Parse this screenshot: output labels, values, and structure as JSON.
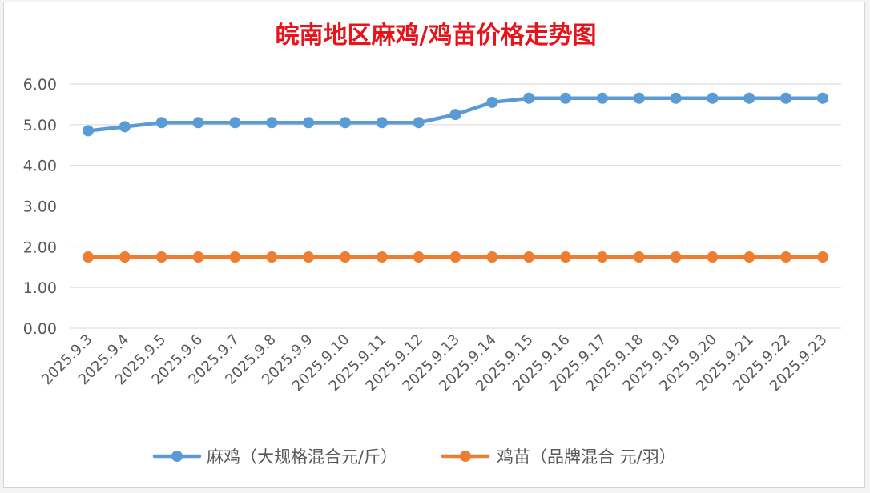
{
  "chart_data": {
    "type": "line",
    "title": "皖南地区麻鸡/鸡苗价格走势图",
    "categories": [
      "2025.9.3",
      "2025.9.4",
      "2025.9.5",
      "2025.9.6",
      "2025.9.7",
      "2025.9.8",
      "2025.9.9",
      "2025.9.10",
      "2025.9.11",
      "2025.9.12",
      "2025.9.13",
      "2025.9.14",
      "2025.9.15",
      "2025.9.16",
      "2025.9.17",
      "2025.9.18",
      "2025.9.19",
      "2025.9.20",
      "2025.9.21",
      "2025.9.22",
      "2025.9.23"
    ],
    "series": [
      {
        "name": "麻鸡（大规格混合元/斤）",
        "color": "#5b9bd5",
        "values": [
          4.85,
          4.95,
          5.05,
          5.05,
          5.05,
          5.05,
          5.05,
          5.05,
          5.05,
          5.05,
          5.25,
          5.55,
          5.65,
          5.65,
          5.65,
          5.65,
          5.65,
          5.65,
          5.65,
          5.65,
          5.65
        ]
      },
      {
        "name": "鸡苗（品牌混合 元/羽）",
        "color": "#ed7d31",
        "values": [
          1.75,
          1.75,
          1.75,
          1.75,
          1.75,
          1.75,
          1.75,
          1.75,
          1.75,
          1.75,
          1.75,
          1.75,
          1.75,
          1.75,
          1.75,
          1.75,
          1.75,
          1.75,
          1.75,
          1.75,
          1.75
        ]
      }
    ],
    "yticks": [
      "0.00",
      "1.00",
      "2.00",
      "3.00",
      "4.00",
      "5.00",
      "6.00"
    ],
    "ylim": [
      0,
      6
    ],
    "grid": true,
    "legend_position": "bottom",
    "xlabel": "",
    "ylabel": ""
  }
}
